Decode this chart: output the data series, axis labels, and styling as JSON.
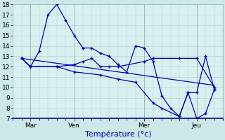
{
  "background_color": "#cce8e8",
  "plot_bg_color": "#d8f0f0",
  "grid_color": "#b0cccc",
  "line_color": "#0000bb",
  "xlabel": "Température (°c)",
  "xlabel_fontsize": 8,
  "tick_fontsize": 6.5,
  "ylim": [
    7,
    18
  ],
  "yticks": [
    7,
    8,
    9,
    10,
    11,
    12,
    13,
    14,
    15,
    16,
    17,
    18
  ],
  "xlim": [
    0,
    24
  ],
  "x_tick_positions": [
    2,
    7,
    15,
    21
  ],
  "x_tick_labels": [
    "Mar",
    "Ven",
    "Mer",
    "Jeu"
  ],
  "series1_x": [
    1,
    2,
    3,
    4,
    5,
    6,
    7,
    8,
    9,
    10,
    11,
    12,
    13,
    14,
    15,
    16,
    17,
    18,
    19,
    20,
    21,
    22,
    23
  ],
  "series1_y": [
    12.8,
    12.0,
    13.5,
    17.0,
    18.0,
    16.5,
    15.0,
    13.8,
    13.8,
    13.3,
    13.0,
    12.2,
    11.5,
    14.0,
    13.8,
    12.5,
    9.2,
    8.0,
    7.2,
    9.5,
    9.5,
    13.0,
    9.8
  ],
  "series2_x": [
    1,
    2,
    5,
    7,
    8,
    9,
    10,
    11,
    12,
    15,
    16,
    19,
    21,
    23
  ],
  "series2_y": [
    12.8,
    12.0,
    12.0,
    12.2,
    12.5,
    12.8,
    12.0,
    12.0,
    12.0,
    12.5,
    12.8,
    12.8,
    12.8,
    10.0
  ],
  "series3_x": [
    1,
    2,
    5,
    7,
    10,
    12,
    14,
    16,
    17,
    19,
    20,
    21,
    22,
    23
  ],
  "series3_y": [
    12.8,
    12.0,
    12.0,
    11.5,
    11.2,
    10.8,
    10.5,
    8.5,
    8.0,
    7.2,
    9.5,
    7.0,
    7.5,
    9.8
  ],
  "series4_x": [
    1,
    23
  ],
  "series4_y": [
    12.8,
    10.2
  ]
}
